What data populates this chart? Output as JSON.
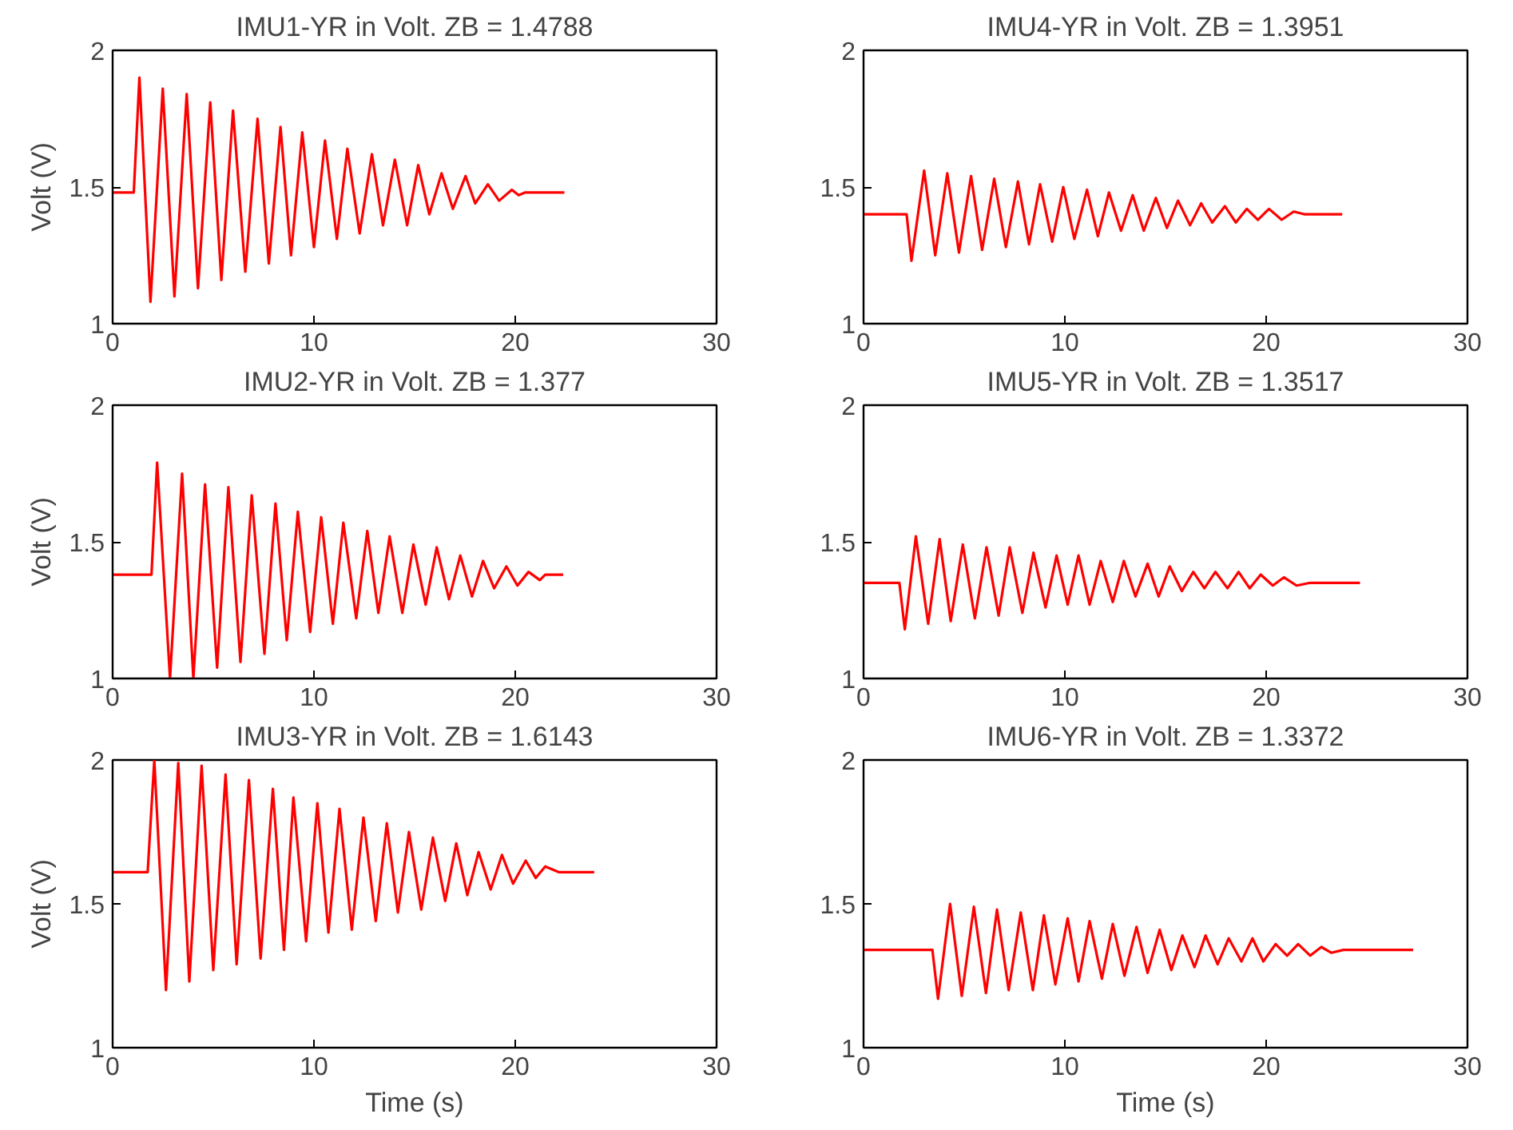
{
  "chart_data": [
    {
      "type": "line",
      "title": "IMU1-YR in Volt. ZB = 1.4788",
      "ylabel": "Volt (V)",
      "xlim": [
        0,
        30
      ],
      "ylim": [
        1,
        2
      ],
      "xticks": [
        0,
        10,
        20,
        30
      ],
      "yticks": [
        1,
        1.5,
        2
      ],
      "grid": false,
      "x": [
        0,
        1.05,
        1.33,
        1.88,
        2.49,
        3.07,
        3.68,
        4.24,
        4.85,
        5.4,
        5.98,
        6.59,
        7.2,
        7.76,
        8.34,
        8.86,
        9.42,
        10.0,
        10.55,
        11.14,
        11.66,
        12.27,
        12.88,
        13.43,
        14.02,
        14.63,
        15.18,
        15.73,
        16.34,
        16.9,
        17.53,
        18.01,
        18.64,
        19.2,
        19.83,
        20.17,
        20.5,
        22.44
      ],
      "series": [
        {
          "color": "#ff0000",
          "values": [
            1.48,
            1.48,
            1.9,
            1.08,
            1.86,
            1.1,
            1.84,
            1.13,
            1.81,
            1.16,
            1.78,
            1.19,
            1.75,
            1.22,
            1.72,
            1.25,
            1.7,
            1.28,
            1.67,
            1.31,
            1.64,
            1.33,
            1.62,
            1.36,
            1.6,
            1.36,
            1.58,
            1.4,
            1.55,
            1.42,
            1.54,
            1.44,
            1.51,
            1.45,
            1.49,
            1.47,
            1.48,
            1.48
          ]
        }
      ]
    },
    {
      "type": "line",
      "title": "IMU4-YR in Volt. ZB = 1.3951",
      "xlim": [
        0,
        30
      ],
      "ylim": [
        1,
        2
      ],
      "xticks": [
        0,
        10,
        20,
        30
      ],
      "yticks": [
        1,
        1.5,
        2
      ],
      "grid": false,
      "x": [
        0,
        2.14,
        2.38,
        3.01,
        3.56,
        4.16,
        4.74,
        5.34,
        5.89,
        6.49,
        7.07,
        7.67,
        8.22,
        8.77,
        9.37,
        9.92,
        10.47,
        11.1,
        11.64,
        12.19,
        12.79,
        13.37,
        13.92,
        14.52,
        15.07,
        15.62,
        16.22,
        16.77,
        17.32,
        17.95,
        18.49,
        19.04,
        19.59,
        20.14,
        20.77,
        21.37,
        21.92,
        23.78
      ],
      "series": [
        {
          "color": "#ff0000",
          "values": [
            1.4,
            1.4,
            1.23,
            1.56,
            1.25,
            1.55,
            1.26,
            1.54,
            1.27,
            1.53,
            1.28,
            1.52,
            1.29,
            1.51,
            1.3,
            1.5,
            1.31,
            1.49,
            1.32,
            1.48,
            1.34,
            1.47,
            1.34,
            1.46,
            1.35,
            1.45,
            1.36,
            1.44,
            1.37,
            1.43,
            1.37,
            1.42,
            1.38,
            1.42,
            1.38,
            1.41,
            1.4,
            1.4
          ]
        }
      ]
    },
    {
      "type": "line",
      "title": "IMU2-YR in Volt. ZB = 1.377",
      "ylabel": "Volt (V)",
      "xlim": [
        0,
        30
      ],
      "ylim": [
        1,
        2
      ],
      "xticks": [
        0,
        10,
        20,
        30
      ],
      "yticks": [
        1,
        1.5,
        2
      ],
      "grid": false,
      "x": [
        0,
        1.93,
        2.21,
        2.85,
        3.45,
        4.01,
        4.59,
        5.19,
        5.75,
        6.35,
        6.91,
        7.54,
        8.09,
        8.65,
        9.2,
        9.81,
        10.36,
        10.94,
        11.46,
        12.1,
        12.65,
        13.2,
        13.76,
        14.39,
        14.94,
        15.55,
        16.1,
        16.71,
        17.27,
        17.85,
        18.4,
        18.95,
        19.56,
        20.11,
        20.66,
        21.22,
        21.49,
        22.38
      ],
      "series": [
        {
          "color": "#ff0000",
          "values": [
            1.38,
            1.38,
            1.79,
            1.0,
            1.75,
            1.0,
            1.71,
            1.04,
            1.7,
            1.06,
            1.67,
            1.09,
            1.64,
            1.14,
            1.61,
            1.17,
            1.59,
            1.2,
            1.57,
            1.22,
            1.54,
            1.24,
            1.52,
            1.24,
            1.49,
            1.27,
            1.48,
            1.29,
            1.45,
            1.3,
            1.43,
            1.33,
            1.41,
            1.34,
            1.39,
            1.36,
            1.38,
            1.38
          ]
        }
      ]
    },
    {
      "type": "line",
      "title": "IMU5-YR in Volt. ZB = 1.3517",
      "xlim": [
        0,
        30
      ],
      "ylim": [
        1,
        2
      ],
      "xticks": [
        0,
        10,
        20,
        30
      ],
      "yticks": [
        1,
        1.5,
        2
      ],
      "grid": false,
      "x": [
        0,
        1.78,
        2.05,
        2.6,
        3.21,
        3.78,
        4.33,
        4.93,
        5.53,
        6.11,
        6.71,
        7.26,
        7.89,
        8.44,
        9.04,
        9.59,
        10.14,
        10.68,
        11.23,
        11.78,
        12.38,
        12.93,
        13.51,
        14.11,
        14.66,
        15.21,
        15.81,
        16.38,
        16.93,
        17.48,
        18.08,
        18.63,
        19.18,
        19.73,
        20.33,
        20.88,
        21.51,
        22.19,
        24.66
      ],
      "series": [
        {
          "color": "#ff0000",
          "values": [
            1.35,
            1.35,
            1.18,
            1.52,
            1.2,
            1.51,
            1.21,
            1.49,
            1.22,
            1.48,
            1.23,
            1.48,
            1.24,
            1.46,
            1.26,
            1.45,
            1.27,
            1.45,
            1.27,
            1.43,
            1.28,
            1.43,
            1.3,
            1.42,
            1.3,
            1.41,
            1.32,
            1.39,
            1.33,
            1.39,
            1.33,
            1.39,
            1.33,
            1.38,
            1.34,
            1.37,
            1.34,
            1.35,
            1.35
          ]
        }
      ]
    },
    {
      "type": "line",
      "title": "IMU3-YR in Volt. ZB = 1.6143",
      "ylabel": "Volt (V)",
      "xlabel": "Time (s)",
      "xlim": [
        0,
        30
      ],
      "ylim": [
        1,
        2
      ],
      "xticks": [
        0,
        10,
        20,
        30
      ],
      "yticks": [
        1,
        1.5,
        2
      ],
      "grid": false,
      "x": [
        0,
        1.74,
        2.07,
        2.65,
        3.26,
        3.81,
        4.42,
        5.0,
        5.61,
        6.16,
        6.77,
        7.35,
        7.96,
        8.51,
        8.98,
        9.61,
        10.17,
        10.72,
        11.27,
        11.88,
        12.46,
        13.07,
        13.62,
        14.17,
        14.72,
        15.33,
        15.91,
        16.52,
        17.07,
        17.62,
        18.18,
        18.78,
        19.34,
        19.89,
        20.52,
        21.02,
        21.49,
        22.18,
        23.92
      ],
      "series": [
        {
          "color": "#ff0000",
          "values": [
            1.61,
            1.61,
            2.0,
            1.2,
            1.99,
            1.23,
            1.98,
            1.27,
            1.95,
            1.29,
            1.93,
            1.31,
            1.9,
            1.34,
            1.87,
            1.37,
            1.85,
            1.4,
            1.83,
            1.41,
            1.8,
            1.44,
            1.78,
            1.47,
            1.75,
            1.48,
            1.73,
            1.51,
            1.71,
            1.53,
            1.68,
            1.55,
            1.67,
            1.57,
            1.65,
            1.59,
            1.63,
            1.61,
            1.61
          ]
        }
      ]
    },
    {
      "type": "line",
      "title": "IMU6-YR in Volt. ZB = 1.3372",
      "xlabel": "Time (s)",
      "xlim": [
        0,
        30
      ],
      "ylim": [
        1,
        2
      ],
      "xticks": [
        0,
        10,
        20,
        30
      ],
      "yticks": [
        1,
        1.5,
        2
      ],
      "grid": false,
      "x": [
        0,
        3.42,
        3.7,
        4.3,
        4.88,
        5.48,
        6.08,
        6.63,
        7.21,
        7.81,
        8.41,
        8.96,
        9.53,
        10.14,
        10.68,
        11.23,
        11.84,
        12.38,
        12.96,
        13.56,
        14.11,
        14.71,
        15.29,
        15.84,
        16.44,
        16.99,
        17.59,
        18.14,
        18.77,
        19.32,
        19.86,
        20.47,
        21.04,
        21.59,
        22.19,
        22.74,
        23.23,
        23.84,
        27.3
      ],
      "series": [
        {
          "color": "#ff0000",
          "values": [
            1.34,
            1.34,
            1.17,
            1.5,
            1.18,
            1.49,
            1.19,
            1.48,
            1.2,
            1.47,
            1.2,
            1.46,
            1.22,
            1.45,
            1.23,
            1.44,
            1.24,
            1.43,
            1.25,
            1.42,
            1.26,
            1.41,
            1.27,
            1.39,
            1.28,
            1.39,
            1.29,
            1.38,
            1.3,
            1.38,
            1.3,
            1.36,
            1.32,
            1.36,
            1.32,
            1.35,
            1.33,
            1.34,
            1.34
          ]
        }
      ]
    }
  ]
}
